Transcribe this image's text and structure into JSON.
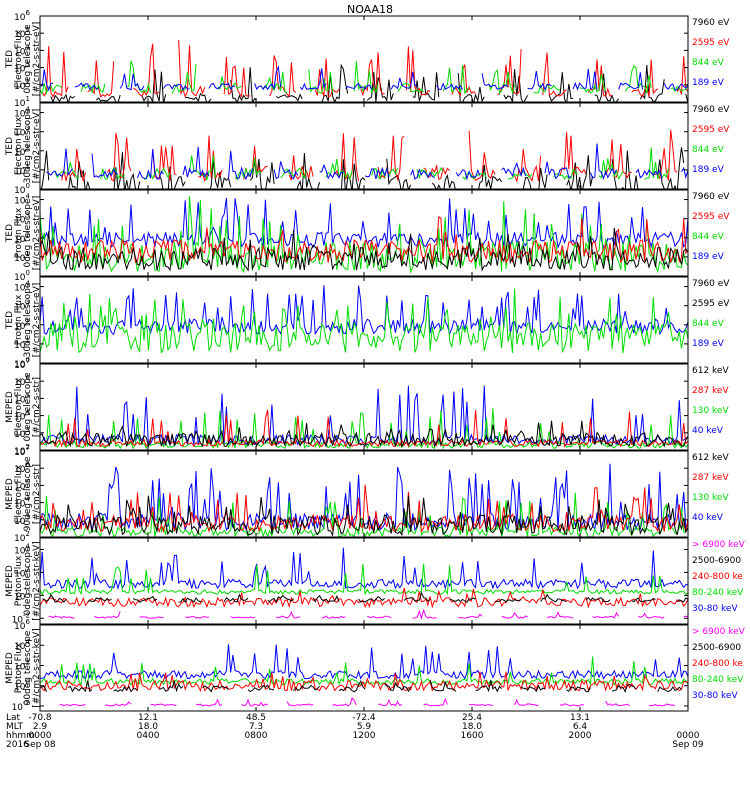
{
  "title": "NOAA18",
  "colors": {
    "black": "#000000",
    "red": "#ff0000",
    "green": "#00dd00",
    "blue": "#0000ff",
    "magenta": "#ff00ff"
  },
  "chart_data": {
    "type": "line",
    "panels": [
      {
        "name": "ted-electron-0deg",
        "ylabel": [
          "TED",
          "Electron Flux",
          "0deg telescope",
          "[#/cm2-s-str-eV]"
        ],
        "yticks": [
          [
            1,
            "10",
            "1"
          ],
          [
            2,
            "10",
            "2"
          ],
          [
            3,
            "10",
            "3"
          ],
          [
            4,
            "10",
            "4"
          ],
          [
            5,
            "10",
            "5"
          ],
          [
            6,
            "10",
            "6"
          ]
        ],
        "ylim": [
          1,
          6
        ],
        "legend": [
          "7960 eV",
          "2595 eV",
          "844 eV",
          "189 eV"
        ],
        "series": [
          {
            "name": "7960 eV",
            "color": "black",
            "base": 1.2,
            "base_amp": 0.3,
            "spike_amp": 2.0,
            "spike_prob": 0.15,
            "gap": true,
            "seed": 11
          },
          {
            "name": "2595 eV",
            "color": "red",
            "base": 1.6,
            "base_amp": 0.3,
            "spike_amp": 2.8,
            "spike_prob": 0.15,
            "gap": true,
            "seed": 12
          },
          {
            "name": "844 eV",
            "color": "green",
            "base": 1.8,
            "base_amp": 0.3,
            "spike_amp": 1.5,
            "spike_prob": 0.08,
            "gap": true,
            "seed": 13
          },
          {
            "name": "189 eV",
            "color": "blue",
            "base": 1.9,
            "base_amp": 0.2,
            "spike_amp": 1.2,
            "spike_prob": 0.05,
            "gap": true,
            "seed": 14
          }
        ]
      },
      {
        "name": "ted-electron-30deg",
        "ylabel": [
          "TED",
          "Electron Flux",
          "30deg telescope",
          "[#/cm2-s-str-eV]"
        ],
        "yticks": [
          [
            0,
            "10",
            "0"
          ],
          [
            1,
            "10",
            "1"
          ],
          [
            2,
            "10",
            "2"
          ],
          [
            3,
            "10",
            "3"
          ],
          [
            4,
            "10",
            "4"
          ]
        ],
        "ylim": [
          0,
          4.5
        ],
        "legend": [
          "7960 eV",
          "2595 eV",
          "844 eV",
          "189 eV"
        ],
        "series": [
          {
            "name": "7960 eV",
            "color": "black",
            "base": 0.2,
            "base_amp": 0.5,
            "spike_amp": 1.6,
            "spike_prob": 0.2,
            "gap": true,
            "seed": 21
          },
          {
            "name": "2595 eV",
            "color": "red",
            "base": 0.8,
            "base_amp": 0.4,
            "spike_amp": 2.2,
            "spike_prob": 0.15,
            "gap": true,
            "seed": 22
          },
          {
            "name": "844 eV",
            "color": "green",
            "base": 0.8,
            "base_amp": 0.3,
            "spike_amp": 1.2,
            "spike_prob": 0.06,
            "gap": true,
            "seed": 23
          },
          {
            "name": "189 eV",
            "color": "blue",
            "base": 0.8,
            "base_amp": 0.3,
            "spike_amp": 1.3,
            "spike_prob": 0.06,
            "gap": true,
            "seed": 24
          }
        ]
      },
      {
        "name": "ted-proton-0deg",
        "ylabel": [
          "TED",
          "Proton Flux",
          "0deg telescope",
          "[#/cm2-s-str-eV]"
        ],
        "yticks": [
          [
            0,
            "10",
            "0"
          ],
          [
            1,
            "10",
            "1"
          ],
          [
            2,
            "10",
            "2"
          ],
          [
            3,
            "10",
            "3"
          ],
          [
            4,
            "10",
            "4"
          ]
        ],
        "ylim": [
          0,
          4.5
        ],
        "legend": [
          "7960 eV",
          "2595 eV",
          "844 eV",
          "189 eV"
        ],
        "series": [
          {
            "name": "189 eV",
            "color": "blue",
            "base": 1.9,
            "base_amp": 0.4,
            "spike_amp": 2.0,
            "spike_prob": 0.12,
            "gap": false,
            "seed": 31
          },
          {
            "name": "844 eV",
            "color": "green",
            "base": 1.0,
            "base_amp": 0.8,
            "spike_amp": 2.5,
            "spike_prob": 0.12,
            "gap": false,
            "seed": 32
          },
          {
            "name": "2595 eV",
            "color": "red",
            "base": 1.3,
            "base_amp": 0.6,
            "spike_amp": 1.3,
            "spike_prob": 0.08,
            "gap": false,
            "seed": 33
          },
          {
            "name": "7960 eV",
            "color": "black",
            "base": 0.9,
            "base_amp": 0.6,
            "spike_amp": 1.2,
            "spike_prob": 0.1,
            "gap": false,
            "seed": 34
          }
        ]
      },
      {
        "name": "ted-proton-30deg",
        "ylabel": [
          "TED",
          "Proton Flux",
          "30deg telescope",
          "[#/cm2-s-str-eV]"
        ],
        "yticks": [
          [
            0,
            "10",
            "0"
          ],
          [
            1,
            "10",
            "1"
          ],
          [
            2,
            "10",
            "2"
          ],
          [
            3,
            "10",
            "3"
          ],
          [
            4,
            "10",
            "4"
          ]
        ],
        "ylim": [
          0,
          4.5
        ],
        "legend": [
          "7960 eV",
          "2595 eV",
          "844 eV",
          "189 eV"
        ],
        "series": [
          {
            "name": "189 eV",
            "color": "blue",
            "base": 1.9,
            "base_amp": 0.4,
            "spike_amp": 2.0,
            "spike_prob": 0.12,
            "gap": false,
            "seed": 41
          },
          {
            "name": "844 eV",
            "color": "green",
            "base": 1.3,
            "base_amp": 0.8,
            "spike_amp": 2.0,
            "spike_prob": 0.15,
            "gap": false,
            "seed": 42
          }
        ]
      },
      {
        "name": "meped-electron-0deg",
        "ylabel": [
          "MEPED",
          "Electron Flux",
          "0deg telescope",
          "[#/cm2-s-str]"
        ],
        "yticks": [
          [
            2,
            "10",
            "2"
          ],
          [
            3,
            "10",
            "3"
          ],
          [
            4,
            "10",
            "4"
          ],
          [
            5,
            "10",
            "5"
          ],
          [
            6,
            "10",
            "6"
          ],
          [
            7,
            "10",
            "7"
          ]
        ],
        "ylim": [
          2,
          7
        ],
        "legend": [
          "612 keV",
          "287 keV",
          "130 keV",
          "40 keV"
        ],
        "series": [
          {
            "name": "40 keV",
            "color": "blue",
            "base": 2.6,
            "base_amp": 0.3,
            "spike_amp": 3.0,
            "spike_prob": 0.1,
            "gap": false,
            "seed": 51
          },
          {
            "name": "130 keV",
            "color": "green",
            "base": 2.3,
            "base_amp": 0.2,
            "spike_amp": 2.0,
            "spike_prob": 0.07,
            "gap": false,
            "seed": 52
          },
          {
            "name": "287 keV",
            "color": "red",
            "base": 2.4,
            "base_amp": 0.2,
            "spike_amp": 1.8,
            "spike_prob": 0.07,
            "gap": false,
            "seed": 53
          },
          {
            "name": "612 keV",
            "color": "black",
            "base": 2.6,
            "base_amp": 0.4,
            "spike_amp": 0.8,
            "spike_prob": 0.1,
            "gap": false,
            "seed": 54
          }
        ]
      },
      {
        "name": "meped-electron-90deg",
        "ylabel": [
          "MEPED",
          "Electron Flux",
          "90deg telescope",
          "[#/cm2-s-str]"
        ],
        "yticks": [
          [
            2,
            "10",
            "2"
          ],
          [
            3,
            "10",
            "3"
          ],
          [
            4,
            "10",
            "4"
          ],
          [
            5,
            "10",
            "5"
          ],
          [
            6,
            "10",
            "6"
          ],
          [
            7,
            "10",
            "7"
          ]
        ],
        "ylim": [
          2,
          7
        ],
        "legend": [
          "612 keV",
          "287 keV",
          "130 keV",
          "40 keV"
        ],
        "series": [
          {
            "name": "40 keV",
            "color": "blue",
            "base": 2.9,
            "base_amp": 0.5,
            "spike_amp": 3.0,
            "spike_prob": 0.14,
            "gap": false,
            "seed": 61
          },
          {
            "name": "130 keV",
            "color": "green",
            "base": 2.3,
            "base_amp": 0.3,
            "spike_amp": 2.2,
            "spike_prob": 0.12,
            "gap": false,
            "seed": 62
          },
          {
            "name": "287 keV",
            "color": "red",
            "base": 2.8,
            "base_amp": 0.5,
            "spike_amp": 1.8,
            "spike_prob": 0.12,
            "gap": false,
            "seed": 63
          },
          {
            "name": "612 keV",
            "color": "black",
            "base": 2.7,
            "base_amp": 0.6,
            "spike_amp": 1.2,
            "spike_prob": 0.14,
            "gap": false,
            "seed": 64
          }
        ]
      },
      {
        "name": "meped-proton-0deg",
        "ylabel": [
          "MEPED",
          "Proton Flux",
          "0deg telescope",
          "[#/cm2-s-str-keV]"
        ],
        "yticks": [
          [
            -2,
            "10",
            "-2"
          ],
          [
            0,
            "10",
            "0"
          ],
          [
            2,
            "10",
            "2"
          ],
          [
            4,
            "10",
            "4"
          ]
        ],
        "ylim": [
          -2.5,
          5
        ],
        "legend": [
          "> 6900 keV",
          "2500-6900",
          "240-800 ke",
          "80-240 keV",
          "30-80 keV"
        ],
        "series": [
          {
            "name": "30-80 keV",
            "color": "blue",
            "base": 1.0,
            "base_amp": 0.4,
            "spike_amp": 3.0,
            "spike_prob": 0.08,
            "gap": false,
            "seed": 71
          },
          {
            "name": "80-240 keV",
            "color": "green",
            "base": 0.3,
            "base_amp": 0.2,
            "spike_amp": 2.5,
            "spike_prob": 0.07,
            "gap": false,
            "seed": 72
          },
          {
            "name": "240-800 ke",
            "color": "red",
            "base": -0.6,
            "base_amp": 0.4,
            "spike_amp": 1.2,
            "spike_prob": 0.07,
            "gap": false,
            "seed": 73
          },
          {
            "name": "> 6900 keV",
            "color": "magenta",
            "base": -1.9,
            "base_amp": 0.1,
            "spike_amp": 0.6,
            "spike_prob": 0.05,
            "gap": true,
            "seed": 74
          },
          {
            "name": "2500-6900",
            "color": "black",
            "base": -0.4,
            "base_amp": 0.2,
            "spike_amp": 0.5,
            "spike_prob": 0.04,
            "gap": true,
            "seed": 75
          }
        ]
      },
      {
        "name": "meped-proton-90deg",
        "ylabel": [
          "MEPED",
          "Proton Flux",
          "90deg telescope",
          "[#/cm2-s-str-keV]"
        ],
        "yticks": [
          [
            -2,
            "10",
            "-2"
          ],
          [
            0,
            "10",
            "0"
          ],
          [
            2,
            "10",
            "2"
          ],
          [
            4,
            "10",
            "4"
          ],
          [
            6,
            "10",
            "6"
          ]
        ],
        "ylim": [
          -2.5,
          6
        ],
        "legend": [
          "> 6900 keV",
          "2500-6900",
          "240-800 ke",
          "80-240 keV",
          "30-80 keV"
        ],
        "series": [
          {
            "name": "30-80 keV",
            "color": "blue",
            "base": 1.1,
            "base_amp": 0.4,
            "spike_amp": 3.0,
            "spike_prob": 0.09,
            "gap": false,
            "seed": 81
          },
          {
            "name": "80-240 keV",
            "color": "green",
            "base": 0.4,
            "base_amp": 0.3,
            "spike_amp": 2.5,
            "spike_prob": 0.08,
            "gap": false,
            "seed": 82
          },
          {
            "name": "240-800 ke",
            "color": "red",
            "base": 0.0,
            "base_amp": 0.5,
            "spike_amp": 1.2,
            "spike_prob": 0.1,
            "gap": false,
            "seed": 83
          },
          {
            "name": "2500-6900",
            "color": "black",
            "base": -0.3,
            "base_amp": 0.3,
            "spike_amp": 0.8,
            "spike_prob": 0.06,
            "gap": true,
            "seed": 84
          },
          {
            "name": "> 6900 keV",
            "color": "magenta",
            "base": -1.9,
            "base_amp": 0.1,
            "spike_amp": 0.6,
            "spike_prob": 0.05,
            "gap": true,
            "seed": 85
          }
        ]
      }
    ],
    "x_axis": {
      "row_labels": [
        "Lat",
        "MLT",
        "hhmm",
        "2016"
      ],
      "ticks": [
        {
          "hour": 0,
          "lat": "-70.8",
          "mlt": "2.9",
          "hhmm": "0000",
          "date": "Sep 08"
        },
        {
          "hour": 4,
          "lat": "12.1",
          "mlt": "18.0",
          "hhmm": "0400",
          "date": ""
        },
        {
          "hour": 8,
          "lat": "48.5",
          "mlt": "7.3",
          "hhmm": "0800",
          "date": ""
        },
        {
          "hour": 12,
          "lat": "-72.4",
          "mlt": "5.9",
          "hhmm": "1200",
          "date": ""
        },
        {
          "hour": 16,
          "lat": "25.4",
          "mlt": "18.0",
          "hhmm": "1600",
          "date": ""
        },
        {
          "hour": 20,
          "lat": "13.1",
          "mlt": "6.4",
          "hhmm": "2000",
          "date": ""
        },
        {
          "hour": 24,
          "lat": "",
          "mlt": "",
          "hhmm": "0000",
          "date": "Sep 09"
        }
      ],
      "xlim_hours": [
        0,
        24
      ]
    }
  }
}
